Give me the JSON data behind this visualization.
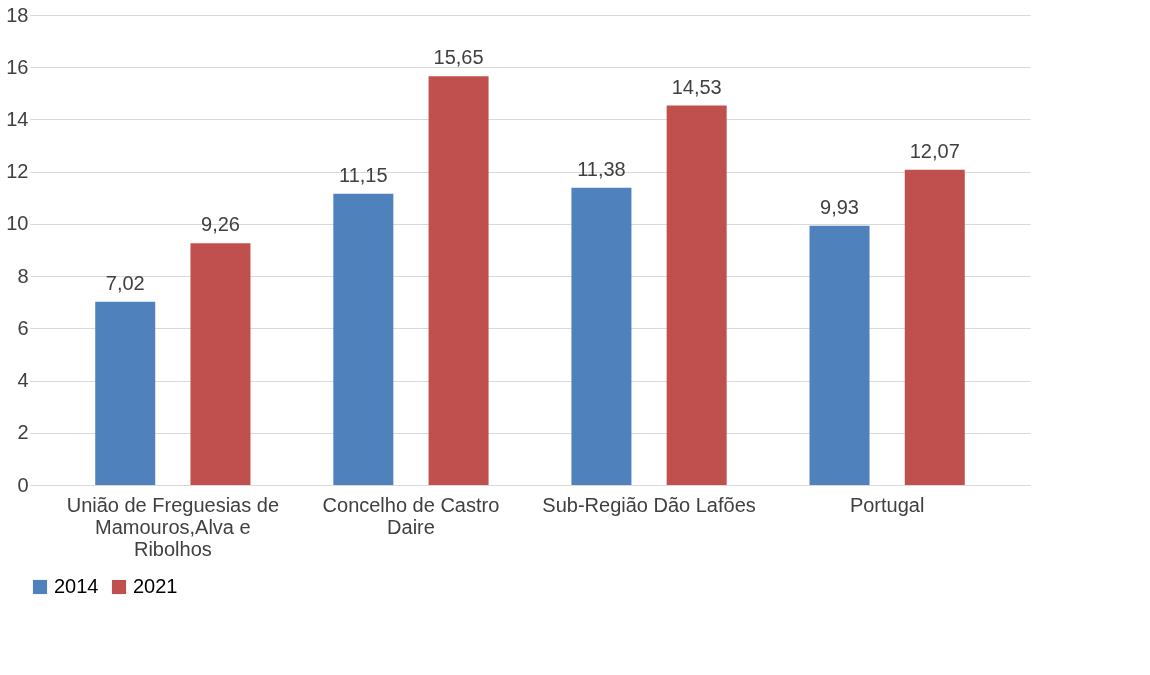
{
  "chart_data": {
    "type": "bar",
    "categories": [
      "União de Freguesias de Mamouros,Alva e Ribolhos",
      "Concelho de Castro Daire",
      "Sub-Região Dão Lafões",
      "Portugal"
    ],
    "series": [
      {
        "name": "2014",
        "color": "#4f81bd",
        "values": [
          7.02,
          11.15,
          11.38,
          9.93
        ],
        "value_labels": [
          "7,02",
          "11,15",
          "11,38",
          "9,93"
        ]
      },
      {
        "name": "2021",
        "color": "#c0504d",
        "values": [
          9.26,
          15.65,
          14.53,
          12.07
        ],
        "value_labels": [
          "9,26",
          "15,65",
          "14,53",
          "12,07"
        ]
      }
    ],
    "ylim": [
      0,
      18
    ],
    "yticks": [
      0,
      2,
      4,
      6,
      8,
      10,
      12,
      14,
      16,
      18
    ],
    "grid": "y",
    "legend": "bottom"
  }
}
